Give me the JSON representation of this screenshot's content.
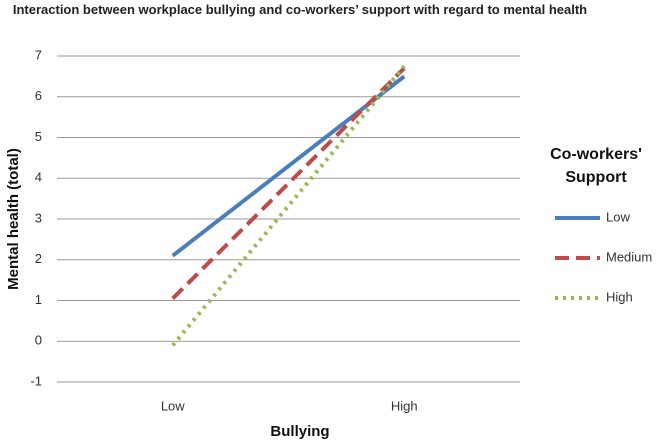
{
  "chart_data": {
    "type": "line",
    "title": "Interaction between workplace bullying and co-workers’ support with regard to mental health",
    "x_label": "Bullying",
    "y_label": "Mental health (total)",
    "legend_title": "Co-workers' Support",
    "categories": [
      "Low",
      "High"
    ],
    "series": [
      {
        "name": "Low",
        "color": "#4a7ebb",
        "dash": "solid",
        "values": [
          2.1,
          6.5
        ]
      },
      {
        "name": "Medium",
        "color": "#be4b48",
        "dash": "dashed",
        "values": [
          1.05,
          6.7
        ]
      },
      {
        "name": "High",
        "color": "#98b954",
        "dash": "dotted",
        "values": [
          -0.1,
          6.75
        ]
      }
    ],
    "ylim": [
      -1,
      7
    ],
    "yticks": [
      -1,
      0,
      1,
      2,
      3,
      4,
      5,
      6,
      7
    ],
    "grid": true,
    "legend": "right"
  }
}
